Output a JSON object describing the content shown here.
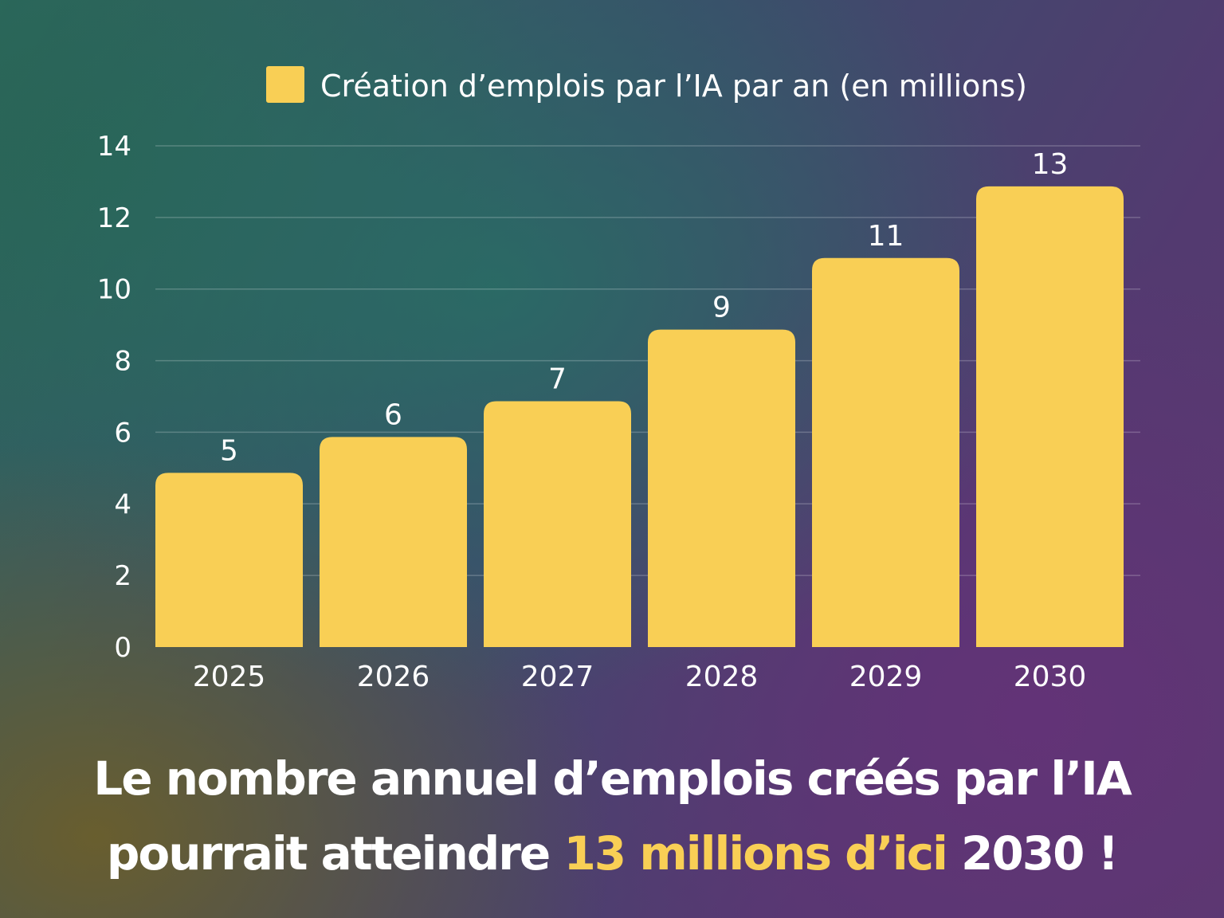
{
  "chart_data": {
    "type": "bar",
    "categories": [
      "2025",
      "2026",
      "2027",
      "2028",
      "2029",
      "2030"
    ],
    "series": [
      {
        "name": "Création d’emplois par l’IA par an (en millions)",
        "values": [
          5,
          6,
          7,
          9,
          11,
          13
        ],
        "color": "#f9cf55"
      }
    ],
    "data_labels": [
      "5",
      "6",
      "7",
      "9",
      "11",
      "13"
    ],
    "ylim": [
      0,
      14
    ],
    "yticks": [
      "0",
      "2",
      "4",
      "6",
      "8",
      "10",
      "12",
      "14"
    ],
    "grid": true,
    "legend_position": "top-center"
  },
  "headline": {
    "line1": "Le nombre annuel d’emplois créés par l’IA",
    "line2_start": "pourrait atteindre ",
    "line2_accent": "13 millions d’ici",
    "line2_end": " 2030 !",
    "accent_color": "#f9cf55"
  }
}
